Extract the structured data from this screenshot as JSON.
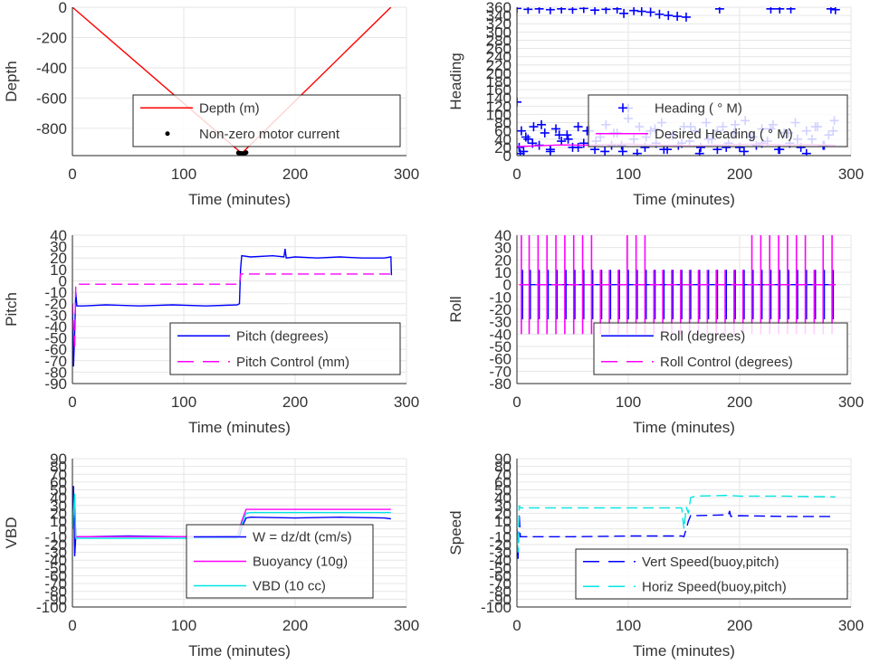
{
  "chart_data": [
    {
      "id": "depth",
      "type": "line",
      "xlabel": "Time (minutes)",
      "ylabel": "Depth",
      "xlim": [
        0,
        300
      ],
      "ylim": [
        -980,
        0
      ],
      "xticks": [
        "0",
        "100",
        "200",
        "300"
      ],
      "yticks": [
        "0",
        "-200",
        "-400",
        "-600",
        "-800"
      ],
      "ytick_values": [
        0,
        -200,
        -400,
        -600,
        -800
      ],
      "grid": true,
      "legend_position": "center-bottom",
      "series": [
        {
          "name": "Depth (m)",
          "color": "#ff0000",
          "style": "solid",
          "marker": "none",
          "x": [
            0,
            152,
            286
          ],
          "y": [
            0,
            -965,
            0
          ]
        },
        {
          "name": "Non-zero motor current",
          "color": "#000000",
          "style": "none",
          "marker": "dot",
          "x": [
            149,
            150,
            151,
            152,
            153,
            154,
            155,
            156
          ],
          "y": [
            -962,
            -968,
            -964,
            -970,
            -966,
            -972,
            -965,
            -960
          ]
        }
      ]
    },
    {
      "id": "heading",
      "type": "scatter",
      "xlabel": "Time (minutes)",
      "ylabel": "Heading",
      "xlim": [
        0,
        300
      ],
      "ylim": [
        0,
        360
      ],
      "xticks": [
        "0",
        "100",
        "200",
        "300"
      ],
      "yticks": [
        "0",
        "20",
        "40",
        "60",
        "80",
        "100",
        "120",
        "140",
        "160",
        "180",
        "200",
        "220",
        "240",
        "260",
        "280",
        "300",
        "320",
        "340",
        "360"
      ],
      "ytick_values": [
        0,
        20,
        40,
        60,
        80,
        100,
        120,
        140,
        160,
        180,
        200,
        220,
        240,
        260,
        280,
        300,
        320,
        340,
        360
      ],
      "grid": true,
      "legend_position": "center-right",
      "series": [
        {
          "name": "Heading (  ° M)",
          "color": "#0000ff",
          "style": "none",
          "marker": "plus",
          "x": [
            0,
            2,
            4,
            6,
            10,
            15,
            20,
            25,
            30,
            35,
            40,
            45,
            50,
            55,
            60,
            65,
            70,
            75,
            80,
            85,
            90,
            95,
            100,
            105,
            110,
            115,
            120,
            125,
            130,
            135,
            140,
            145,
            150,
            155,
            160,
            165,
            170,
            175,
            180,
            185,
            190,
            195,
            200,
            205,
            210,
            215,
            220,
            225,
            230,
            235,
            240,
            245,
            250,
            255,
            260,
            265,
            270,
            275,
            280,
            285,
            3,
            8,
            14,
            22,
            30,
            38,
            46,
            55,
            63,
            71,
            79,
            87,
            94,
            100,
            108,
            116,
            124,
            132,
            140,
            148,
            156,
            164,
            172,
            180,
            188,
            196,
            204,
            212,
            220,
            228,
            236,
            244,
            252,
            260,
            268,
            276,
            284,
            0,
            10,
            20,
            30,
            40,
            50,
            60,
            70,
            80,
            90,
            96,
            105,
            112,
            120,
            128,
            136,
            144,
            152,
            182,
            228,
            236,
            246,
            282,
            286
          ],
          "y": [
            130,
            20,
            60,
            10,
            40,
            70,
            25,
            55,
            15,
            65,
            35,
            50,
            20,
            70,
            30,
            60,
            15,
            45,
            75,
            25,
            55,
            10,
            90,
            40,
            70,
            20,
            60,
            30,
            80,
            15,
            50,
            25,
            70,
            35,
            60,
            20,
            80,
            40,
            15,
            70,
            30,
            55,
            20,
            85,
            45,
            25,
            65,
            35,
            75,
            15,
            55,
            30,
            80,
            20,
            60,
            40,
            70,
            25,
            50,
            85,
            5,
            45,
            30,
            75,
            10,
            50,
            40,
            20,
            60,
            35,
            10,
            55,
            25,
            115,
            5,
            45,
            65,
            15,
            50,
            30,
            70,
            5,
            40,
            60,
            20,
            75,
            10,
            45,
            30,
            65,
            15,
            55,
            40,
            5,
            70,
            25,
            60,
            357,
            355,
            356,
            354,
            356,
            355,
            357,
            353,
            355,
            356,
            345,
            352,
            350,
            348,
            343,
            340,
            338,
            336,
            356,
            356,
            356,
            356,
            356,
            354
          ]
        },
        {
          "name": "Desired Heading (  ° M)",
          "color": "#ff00ff",
          "style": "solid",
          "marker": "none",
          "x": [
            0,
            20,
            40,
            60,
            80,
            100,
            120,
            140,
            160,
            180,
            200,
            220,
            240,
            260,
            286
          ],
          "y": [
            22,
            24,
            26,
            25,
            27,
            28,
            26,
            25,
            24,
            26,
            27,
            28,
            26,
            27,
            25
          ]
        }
      ]
    },
    {
      "id": "pitch",
      "type": "line",
      "xlabel": "Time (minutes)",
      "ylabel": "Pitch",
      "xlim": [
        0,
        300
      ],
      "ylim": [
        -90,
        40
      ],
      "xticks": [
        "0",
        "100",
        "200",
        "300"
      ],
      "yticks": [
        "40",
        "30",
        "20",
        "10",
        "0",
        "-10",
        "-20",
        "-30",
        "-40",
        "-50",
        "-60",
        "-70",
        "-80",
        "-90"
      ],
      "ytick_values": [
        40,
        30,
        20,
        10,
        0,
        -10,
        -20,
        -30,
        -40,
        -50,
        -60,
        -70,
        -80,
        -90
      ],
      "grid": true,
      "legend_position": "bottom-right",
      "series": [
        {
          "name": "Pitch (degrees)",
          "color": "#0000ff",
          "style": "solid",
          "marker": "none",
          "x": [
            0,
            1,
            2,
            3,
            4,
            10,
            30,
            60,
            90,
            120,
            148,
            150,
            151,
            152,
            160,
            180,
            190,
            191,
            192,
            200,
            220,
            240,
            260,
            280,
            286,
            286.5
          ],
          "y": [
            -20,
            -75,
            -45,
            -10,
            -22,
            -22,
            -21,
            -22,
            -21,
            -22,
            -21,
            -20,
            10,
            22,
            21,
            22,
            21,
            28,
            20,
            21,
            20,
            21,
            20,
            20,
            21,
            5
          ]
        },
        {
          "name": "Pitch Control (mm)",
          "color": "#ff00ff",
          "style": "dashed",
          "marker": "none",
          "x": [
            0,
            2,
            3,
            10,
            50,
            100,
            148,
            150,
            151,
            152,
            200,
            250,
            286
          ],
          "y": [
            -20,
            -60,
            -3,
            -3,
            -3,
            -3,
            -3,
            -3,
            6,
            6,
            6,
            6,
            6
          ]
        }
      ]
    },
    {
      "id": "roll",
      "type": "line",
      "xlabel": "Time (minutes)",
      "ylabel": "Roll",
      "xlim": [
        0,
        300
      ],
      "ylim": [
        -80,
        40
      ],
      "xticks": [
        "0",
        "100",
        "200",
        "300"
      ],
      "yticks": [
        "40",
        "30",
        "20",
        "10",
        "0",
        "-10",
        "-20",
        "-30",
        "-40",
        "-50",
        "-60",
        "-70",
        "-80"
      ],
      "ytick_values": [
        40,
        30,
        20,
        10,
        0,
        -10,
        -20,
        -30,
        -40,
        -50,
        -60,
        -70,
        -80
      ],
      "grid": true,
      "legend_position": "bottom-right",
      "series": [
        {
          "name": "Roll (degrees)",
          "color": "#0000ff",
          "style": "solid",
          "marker": "none",
          "spikes_x": [
            5,
            12,
            20,
            28,
            36,
            44,
            52,
            60,
            68,
            76,
            84,
            92,
            100,
            108,
            116,
            124,
            132,
            140,
            148,
            156,
            164,
            172,
            180,
            188,
            196,
            204,
            212,
            220,
            228,
            236,
            244,
            252,
            260,
            268,
            276,
            284
          ],
          "baseline": 0,
          "low": -28,
          "high": 12
        },
        {
          "name": "Roll Control (degrees)",
          "color": "#ff00ff",
          "style": "dashed",
          "marker": "none",
          "spikes_x": [
            4,
            11,
            19,
            27,
            35,
            43,
            51,
            59,
            67,
            75,
            83,
            91,
            99,
            107,
            115,
            123,
            131,
            139,
            147,
            155,
            163,
            171,
            179,
            187,
            195,
            203,
            211,
            219,
            227,
            235,
            243,
            251,
            259,
            267,
            275,
            283
          ],
          "high_x": [
            4,
            11,
            19,
            27,
            35,
            43,
            51,
            59,
            67,
            99,
            107,
            115,
            211,
            219,
            227,
            235,
            243,
            251,
            259,
            275,
            283
          ],
          "baseline": 0,
          "low": -40,
          "high": 40
        }
      ]
    },
    {
      "id": "vbd",
      "type": "line",
      "xlabel": "Time (minutes)",
      "ylabel": "VBD",
      "xlim": [
        0,
        300
      ],
      "ylim": [
        -100,
        90
      ],
      "xticks": [
        "0",
        "100",
        "200",
        "300"
      ],
      "yticks": [
        "90",
        "80",
        "70",
        "60",
        "50",
        "40",
        "30",
        "20",
        "10",
        "0",
        "-10",
        "-20",
        "-30",
        "-40",
        "-50",
        "-60",
        "-70",
        "-80",
        "-90",
        "-100"
      ],
      "ytick_values": [
        90,
        80,
        70,
        60,
        50,
        40,
        30,
        20,
        10,
        0,
        -10,
        -20,
        -30,
        -40,
        -50,
        -60,
        -70,
        -80,
        -90,
        -100
      ],
      "grid": true,
      "legend_position": "bottom-center",
      "series": [
        {
          "name": "W = dz/dt (cm/s)",
          "color": "#0000ff",
          "style": "solid",
          "marker": "none",
          "x": [
            0,
            1,
            2,
            3,
            4,
            10,
            50,
            100,
            148,
            150,
            152,
            156,
            160,
            200,
            240,
            280,
            286
          ],
          "y": [
            0,
            55,
            -35,
            -10,
            -10,
            -10,
            -9,
            -10,
            -9,
            -10,
            2,
            14,
            15,
            14,
            15,
            14,
            13
          ]
        },
        {
          "name": "Buoyancy (10g)",
          "color": "#ff00ff",
          "style": "solid",
          "marker": "none",
          "x": [
            0,
            2,
            3,
            10,
            50,
            100,
            148,
            152,
            156,
            160,
            200,
            240,
            286
          ],
          "y": [
            0,
            40,
            -10,
            -10,
            -10,
            -10,
            -10,
            10,
            25,
            25,
            25,
            25,
            25
          ]
        },
        {
          "name": "VBD (10 cc)",
          "color": "#00e5e5",
          "style": "solid",
          "marker": "none",
          "x": [
            0,
            2,
            3,
            10,
            50,
            100,
            148,
            152,
            156,
            160,
            200,
            240,
            286
          ],
          "y": [
            0,
            45,
            -12,
            -12,
            -12,
            -12,
            -12,
            5,
            20,
            21,
            21,
            21,
            21
          ]
        }
      ]
    },
    {
      "id": "speed",
      "type": "line",
      "xlabel": "Time (minutes)",
      "ylabel": "Speed",
      "xlim": [
        0,
        300
      ],
      "ylim": [
        -100,
        90
      ],
      "xticks": [
        "0",
        "100",
        "200",
        "300"
      ],
      "yticks": [
        "90",
        "80",
        "70",
        "60",
        "50",
        "40",
        "30",
        "20",
        "10",
        "0",
        "-10",
        "-20",
        "-30",
        "-40",
        "-50",
        "-60",
        "-70",
        "-80",
        "-90",
        "-100"
      ],
      "ytick_values": [
        90,
        80,
        70,
        60,
        50,
        40,
        30,
        20,
        10,
        0,
        -10,
        -20,
        -30,
        -40,
        -50,
        -60,
        -70,
        -80,
        -90,
        -100
      ],
      "grid": true,
      "legend_position": "bottom-right",
      "series": [
        {
          "name": "Vert Speed(buoy,pitch)",
          "color": "#0000ff",
          "style": "dashed",
          "marker": "none",
          "x": [
            0,
            1,
            2,
            3,
            4,
            10,
            50,
            100,
            148,
            150,
            152,
            154,
            156,
            160,
            190,
            191,
            192,
            200,
            240,
            286
          ],
          "y": [
            0,
            -40,
            20,
            -10,
            -10,
            -10,
            -10,
            -9,
            -9,
            -10,
            0,
            10,
            17,
            17,
            18,
            23,
            16,
            17,
            16,
            16
          ]
        },
        {
          "name": "Horiz Speed(buoy,pitch)",
          "color": "#00e5e5",
          "style": "dashed",
          "marker": "none",
          "x": [
            0,
            1,
            2,
            3,
            4,
            10,
            50,
            100,
            148,
            150,
            152,
            154,
            156,
            160,
            190,
            200,
            240,
            286
          ],
          "y": [
            0,
            -30,
            30,
            27,
            27,
            27,
            27,
            27,
            27,
            0,
            28,
            20,
            40,
            42,
            43,
            42,
            42,
            41
          ]
        }
      ]
    }
  ]
}
